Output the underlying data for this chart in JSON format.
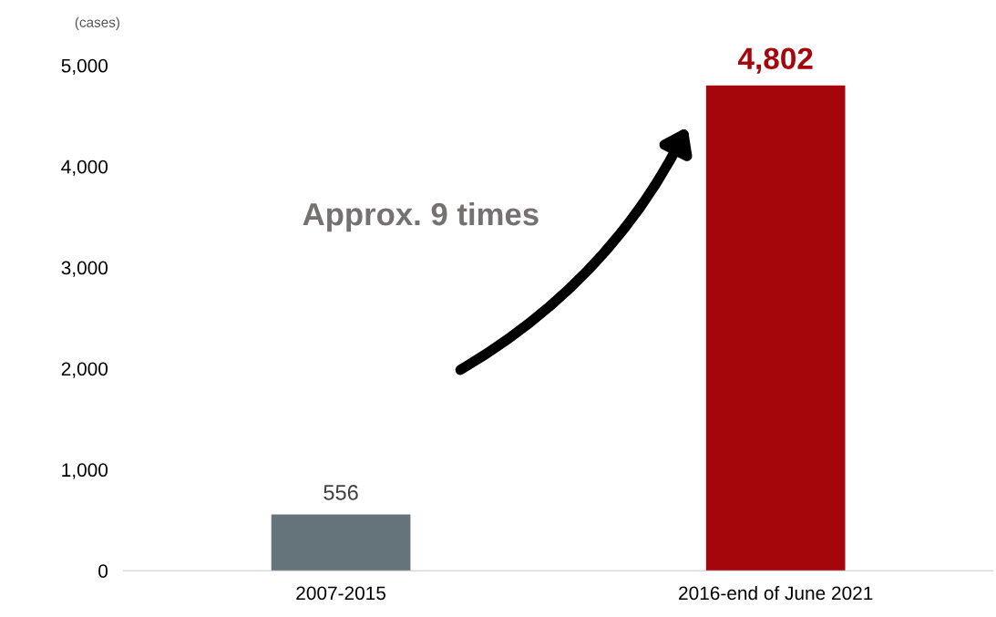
{
  "chart_data": {
    "type": "bar",
    "ylabel": "(cases)",
    "categories": [
      "2007-2015",
      "2016-end of June 2021"
    ],
    "values": [
      556,
      4802
    ],
    "colors": [
      "#65737a",
      "#a5060b"
    ],
    "value_labels": [
      "556",
      "4,802"
    ],
    "ylim": [
      0,
      5000
    ],
    "yticks": [
      0,
      {
        "value": 1000,
        "label": "1,000"
      },
      {
        "value": 2000,
        "label": "2,000"
      },
      {
        "value": 3000,
        "label": "3,000"
      },
      {
        "value": 4000,
        "label": "4,000"
      },
      {
        "value": 5000,
        "label": "5,000"
      }
    ],
    "grid": false,
    "legend": false,
    "annotations": [
      "Approx. 9 times"
    ]
  }
}
